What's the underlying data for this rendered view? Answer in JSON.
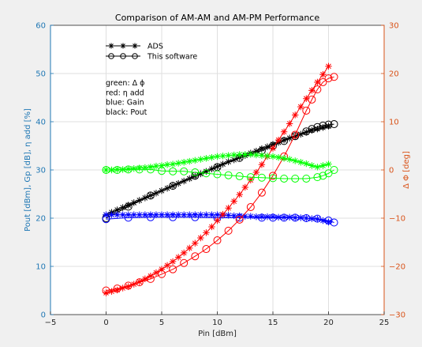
{
  "chart_data": {
    "type": "line",
    "title": "Comparison of AM-AM and AM-PM Performance",
    "xlabel": "Pin [dBm]",
    "ylabel_left": "Pout [dBm], Gp [dB], η add [%]",
    "ylabel_right": "Δ Φ [deg]",
    "xlim": [
      -5,
      25
    ],
    "ylim_left": [
      0,
      60
    ],
    "ylim_right": [
      -30,
      30
    ],
    "xticks": [
      -5,
      0,
      5,
      10,
      15,
      20,
      25
    ],
    "yticks_left": [
      0,
      10,
      20,
      30,
      40,
      50,
      60
    ],
    "yticks_right": [
      -30,
      -20,
      -10,
      0,
      10,
      20,
      30
    ],
    "grid": true,
    "colors": {
      "left_axis": "#1f77b4",
      "right_axis": "#d95319",
      "pout": "#000000",
      "gain": "#0000ff",
      "eff": "#ff0000",
      "phase": "#00ff00"
    },
    "legend": {
      "entries": [
        {
          "marker": "-*-*-*-",
          "label": "ADS"
        },
        {
          "marker": "-o-o-o-",
          "label": "This software"
        }
      ]
    },
    "annotation": [
      "green: Δ ϕ",
      "red: η add",
      "blue: Gain",
      "black: Pout"
    ],
    "series": [
      {
        "axis": "left",
        "color": "#000000",
        "marker": "star",
        "x": [
          0,
          0.5,
          1,
          1.5,
          2,
          2.5,
          3,
          3.5,
          4,
          4.5,
          5,
          5.5,
          6,
          6.5,
          7,
          7.5,
          8,
          8.5,
          9,
          9.5,
          10,
          10.5,
          11,
          11.5,
          12,
          12.5,
          13,
          13.5,
          14,
          14.5,
          15,
          15.5,
          16,
          16.5,
          17,
          17.5,
          18,
          18.5,
          19,
          19.5,
          20
        ],
        "y": [
          20.7,
          21.2,
          21.7,
          22.2,
          22.7,
          23.2,
          23.7,
          24.2,
          24.7,
          25.2,
          25.7,
          26.2,
          26.7,
          27.2,
          27.7,
          28.2,
          28.7,
          29.2,
          29.7,
          30.2,
          30.7,
          31.2,
          31.7,
          32.1,
          32.6,
          33.0,
          33.5,
          33.9,
          34.4,
          34.8,
          35.3,
          35.7,
          36.2,
          36.6,
          37.0,
          37.4,
          37.8,
          38.2,
          38.5,
          38.8,
          39.1
        ]
      },
      {
        "axis": "left",
        "color": "#000000",
        "marker": "circle",
        "x": [
          0,
          2,
          4,
          6,
          8,
          10,
          12,
          14,
          15,
          16,
          17,
          18,
          18.5,
          19,
          19.5,
          20,
          20.5
        ],
        "y": [
          20.0,
          22.4,
          24.7,
          26.7,
          28.8,
          30.6,
          32.5,
          34.0,
          35.0,
          36.0,
          37.0,
          38.0,
          38.5,
          38.9,
          39.2,
          39.4,
          39.5
        ]
      },
      {
        "axis": "left",
        "color": "#0000ff",
        "marker": "star",
        "x": [
          0,
          0.5,
          1,
          1.5,
          2,
          2.5,
          3,
          3.5,
          4,
          4.5,
          5,
          5.5,
          6,
          6.5,
          7,
          7.5,
          8,
          8.5,
          9,
          9.5,
          10,
          10.5,
          11,
          11.5,
          12,
          12.5,
          13,
          13.5,
          14,
          14.5,
          15,
          15.5,
          16,
          16.5,
          17,
          17.5,
          18,
          18.5,
          19,
          19.5,
          20
        ],
        "y": [
          20.7,
          20.7,
          20.7,
          20.7,
          20.7,
          20.7,
          20.7,
          20.7,
          20.7,
          20.7,
          20.7,
          20.7,
          20.7,
          20.7,
          20.7,
          20.7,
          20.7,
          20.7,
          20.7,
          20.7,
          20.7,
          20.6,
          20.6,
          20.5,
          20.5,
          20.4,
          20.4,
          20.3,
          20.3,
          20.3,
          20.3,
          20.2,
          20.2,
          20.2,
          20.1,
          20.1,
          20.0,
          19.9,
          19.8,
          19.5,
          19.2
        ]
      },
      {
        "axis": "left",
        "color": "#0000ff",
        "marker": "circle",
        "x": [
          0,
          2,
          4,
          6,
          8,
          10,
          12,
          14,
          15,
          16,
          17,
          18,
          19,
          20,
          20.5
        ],
        "y": [
          19.8,
          20.1,
          20.2,
          20.2,
          20.2,
          20.1,
          20.1,
          20.1,
          20.1,
          20.1,
          20.1,
          20.0,
          19.9,
          19.5,
          19.1
        ]
      },
      {
        "axis": "right",
        "color": "#ff0000",
        "marker": "star",
        "x": [
          0,
          0.5,
          1,
          1.5,
          2,
          2.5,
          3,
          3.5,
          4,
          4.5,
          5,
          5.5,
          6,
          6.5,
          7,
          7.5,
          8,
          8.5,
          9,
          9.5,
          10,
          10.5,
          11,
          11.5,
          12,
          12.5,
          13,
          13.5,
          14,
          14.5,
          15,
          15.5,
          16,
          16.5,
          17,
          17.5,
          18,
          18.5,
          19,
          19.5,
          20
        ],
        "y": [
          -25.5,
          -25.2,
          -24.9,
          -24.5,
          -24.2,
          -23.7,
          -23.2,
          -22.6,
          -22.0,
          -21.3,
          -20.6,
          -19.8,
          -19.0,
          -18.1,
          -17.2,
          -16.2,
          -15.2,
          -14.1,
          -13.0,
          -11.8,
          -10.5,
          -9.2,
          -7.9,
          -6.5,
          -5.1,
          -3.6,
          -2.1,
          -0.5,
          1.1,
          2.8,
          4.5,
          6.2,
          7.9,
          9.6,
          11.4,
          13.1,
          14.8,
          16.5,
          18.2,
          19.8,
          21.5
        ]
      },
      {
        "axis": "right",
        "color": "#ff0000",
        "marker": "circle",
        "x": [
          0,
          1,
          2,
          3,
          4,
          5,
          6,
          7,
          8,
          9,
          10,
          11,
          12,
          13,
          14,
          15,
          16,
          17,
          18,
          18.5,
          19,
          19.5,
          20,
          20.5
        ],
        "y": [
          -25.0,
          -24.6,
          -24.0,
          -23.3,
          -22.6,
          -21.6,
          -20.6,
          -19.3,
          -17.9,
          -16.4,
          -14.6,
          -12.6,
          -10.3,
          -7.7,
          -4.7,
          -1.2,
          2.8,
          7.3,
          12.3,
          14.6,
          16.7,
          18.2,
          19.0,
          19.3
        ]
      },
      {
        "axis": "right",
        "color": "#00ff00",
        "marker": "star",
        "x": [
          0,
          0.5,
          1,
          1.5,
          2,
          2.5,
          3,
          3.5,
          4,
          4.5,
          5,
          5.5,
          6,
          6.5,
          7,
          7.5,
          8,
          8.5,
          9,
          9.5,
          10,
          10.5,
          11,
          11.5,
          12,
          12.5,
          13,
          13.5,
          14,
          14.5,
          15,
          15.5,
          16,
          16.5,
          17,
          17.5,
          18,
          18.5,
          19,
          19.5,
          20
        ],
        "y": [
          0.0,
          0.0,
          0.1,
          0.1,
          0.2,
          0.3,
          0.4,
          0.5,
          0.6,
          0.8,
          0.9,
          1.1,
          1.2,
          1.4,
          1.6,
          1.8,
          2.0,
          2.2,
          2.4,
          2.6,
          2.8,
          2.9,
          3.0,
          3.1,
          3.2,
          3.2,
          3.2,
          3.1,
          3.0,
          2.9,
          2.8,
          2.6,
          2.4,
          2.2,
          1.9,
          1.6,
          1.3,
          0.9,
          0.6,
          0.9,
          1.2
        ]
      },
      {
        "axis": "right",
        "color": "#00ff00",
        "marker": "circle",
        "x": [
          0,
          1,
          2,
          3,
          4,
          5,
          6,
          7,
          8,
          9,
          10,
          11,
          12,
          13,
          14,
          15,
          16,
          17,
          18,
          19,
          19.5,
          20,
          20.5
        ],
        "y": [
          0.0,
          0.0,
          0.1,
          0.1,
          0.1,
          -0.2,
          -0.3,
          -0.3,
          -0.5,
          -0.7,
          -0.9,
          -1.1,
          -1.3,
          -1.5,
          -1.6,
          -1.7,
          -1.8,
          -1.8,
          -1.8,
          -1.5,
          -1.2,
          -0.7,
          0.0
        ]
      }
    ]
  }
}
